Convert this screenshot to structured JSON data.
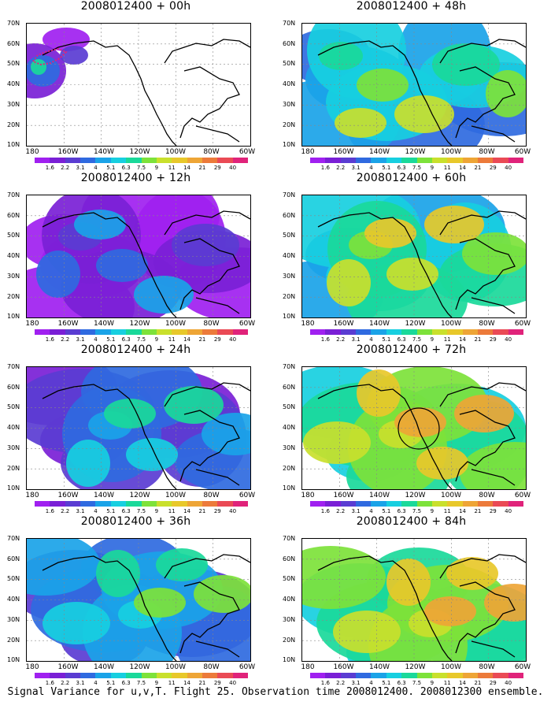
{
  "colorbar": {
    "labels": [
      "1.6",
      "2.2",
      "3.1",
      "4",
      "5.1",
      "6.3",
      "7.5",
      "9",
      "11",
      "14",
      "21",
      "29",
      "40"
    ],
    "colors": [
      "#a020f0",
      "#7a1fd6",
      "#5a3cd2",
      "#2f6ae0",
      "#1aa3e8",
      "#17cfe0",
      "#1ad99a",
      "#7de23a",
      "#c9e02c",
      "#e8c82a",
      "#eea536",
      "#ec7a3a",
      "#ea4a55",
      "#e0237a"
    ]
  },
  "axes": {
    "lat_labels": [
      "70N",
      "60N",
      "50N",
      "40N",
      "30N",
      "20N",
      "10N"
    ],
    "lon_labels": [
      "180",
      "160W",
      "140W",
      "120W",
      "100W",
      "80W",
      "60W"
    ]
  },
  "panels": [
    {
      "title": "2008012400 + 00h",
      "intensity": 0.1
    },
    {
      "title": "2008012400 + 48h",
      "intensity": 0.55
    },
    {
      "title": "2008012400 + 12h",
      "intensity": 0.22
    },
    {
      "title": "2008012400 + 60h",
      "intensity": 0.65
    },
    {
      "title": "2008012400 + 24h",
      "intensity": 0.35
    },
    {
      "title": "2008012400 + 72h",
      "intensity": 0.75
    },
    {
      "title": "2008012400 + 36h",
      "intensity": 0.45
    },
    {
      "title": "2008012400 + 84h",
      "intensity": 0.8
    }
  ],
  "caption": "Signal Variance for u,v,T. Flight 25. Observation time 2008012400. 2008012300 ensemble."
}
